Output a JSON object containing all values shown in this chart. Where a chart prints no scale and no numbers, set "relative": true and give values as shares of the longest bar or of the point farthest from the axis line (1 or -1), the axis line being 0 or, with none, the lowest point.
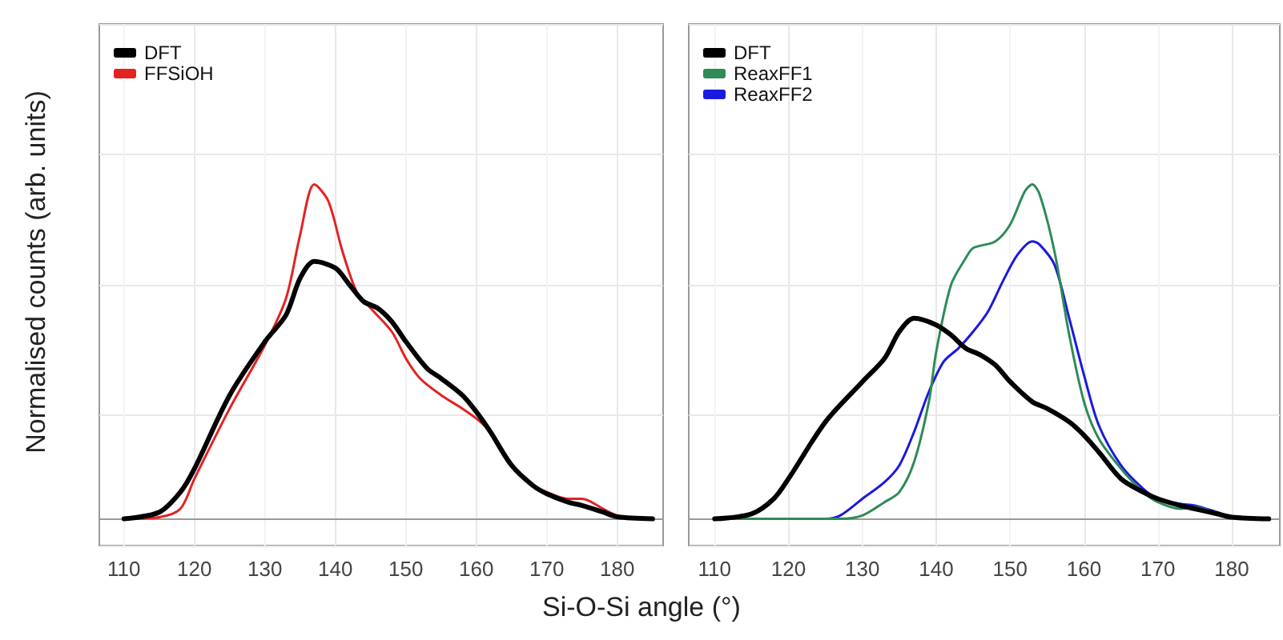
{
  "chart_data": [
    {
      "type": "line",
      "relative": true,
      "xlabel": "Si-O-Si angle (°)",
      "ylabel": "Normalised counts (arb. units)",
      "xlim": [
        106.5,
        186.5
      ],
      "xticks": [
        110,
        120,
        130,
        140,
        150,
        160,
        170,
        180
      ],
      "grid": true,
      "legend": "top left",
      "tick_labels": "x",
      "series": [
        {
          "name": "DFT",
          "color": "#000000",
          "x": [
            110,
            115,
            118,
            120,
            125,
            130,
            133,
            135,
            137,
            140,
            142,
            144,
            146,
            148,
            150,
            153,
            155,
            158,
            160,
            162,
            165,
            168,
            170,
            173,
            175,
            178,
            180,
            185
          ],
          "values": [
            0,
            0.02,
            0.08,
            0.15,
            0.37,
            0.53,
            0.61,
            0.72,
            0.77,
            0.75,
            0.7,
            0.65,
            0.63,
            0.59,
            0.53,
            0.45,
            0.42,
            0.37,
            0.32,
            0.26,
            0.16,
            0.1,
            0.075,
            0.05,
            0.04,
            0.02,
            0.006,
            0
          ]
        },
        {
          "name": "FFSiOH",
          "color": "#e32222",
          "x": [
            110,
            115,
            118,
            120,
            125,
            130,
            133,
            135,
            137,
            139,
            141,
            143,
            145,
            148,
            150,
            152,
            155,
            158,
            160,
            162,
            165,
            168,
            170,
            173,
            175,
            178,
            180,
            185
          ],
          "values": [
            0,
            0.005,
            0.03,
            0.12,
            0.33,
            0.52,
            0.66,
            0.85,
            1,
            0.95,
            0.8,
            0.68,
            0.63,
            0.56,
            0.48,
            0.42,
            0.37,
            0.33,
            0.3,
            0.26,
            0.16,
            0.1,
            0.08,
            0.06,
            0.06,
            0.03,
            0.01,
            0
          ]
        }
      ]
    },
    {
      "type": "line",
      "relative": true,
      "xlim": [
        106.5,
        186.5
      ],
      "xticks": [
        110,
        120,
        130,
        140,
        150,
        160,
        170,
        180
      ],
      "grid": true,
      "legend": "top left",
      "tick_labels": "x",
      "series": [
        {
          "name": "DFT",
          "color": "#000000",
          "x": [
            110,
            115,
            118,
            120,
            125,
            130,
            133,
            135,
            137,
            140,
            142,
            144,
            146,
            148,
            150,
            153,
            155,
            158,
            160,
            162,
            165,
            168,
            170,
            173,
            175,
            178,
            180,
            185
          ],
          "values": [
            0,
            0.015,
            0.06,
            0.12,
            0.29,
            0.41,
            0.48,
            0.56,
            0.6,
            0.58,
            0.55,
            0.51,
            0.49,
            0.46,
            0.41,
            0.35,
            0.33,
            0.29,
            0.25,
            0.2,
            0.12,
            0.08,
            0.06,
            0.04,
            0.03,
            0.015,
            0.005,
            0
          ]
        },
        {
          "name": "ReaxFF1",
          "color": "#2e8b57",
          "x": [
            110,
            127,
            130,
            133,
            135,
            137,
            139,
            140,
            142,
            144,
            145,
            148,
            150,
            152,
            153,
            154,
            156,
            158,
            160,
            162,
            165,
            168,
            170,
            173,
            175,
            178
          ],
          "values": [
            0,
            0,
            0.01,
            0.05,
            0.08,
            0.17,
            0.35,
            0.5,
            0.7,
            0.78,
            0.81,
            0.83,
            0.88,
            0.98,
            1,
            0.97,
            0.8,
            0.55,
            0.35,
            0.24,
            0.15,
            0.08,
            0.05,
            0.03,
            0.035,
            0.015
          ]
        },
        {
          "name": "ReaxFF2",
          "color": "#1a1add",
          "x": [
            110,
            125,
            127,
            130,
            133,
            135,
            137,
            139,
            141,
            143,
            145,
            147,
            149,
            151,
            153,
            154,
            156,
            158,
            160,
            162,
            165,
            168,
            170,
            173,
            175,
            178,
            180,
            185
          ],
          "values": [
            0,
            0,
            0.01,
            0.06,
            0.11,
            0.16,
            0.26,
            0.38,
            0.47,
            0.51,
            0.56,
            0.62,
            0.71,
            0.79,
            0.83,
            0.82,
            0.76,
            0.6,
            0.43,
            0.28,
            0.16,
            0.09,
            0.06,
            0.045,
            0.04,
            0.02,
            0.005,
            0
          ]
        }
      ]
    }
  ]
}
